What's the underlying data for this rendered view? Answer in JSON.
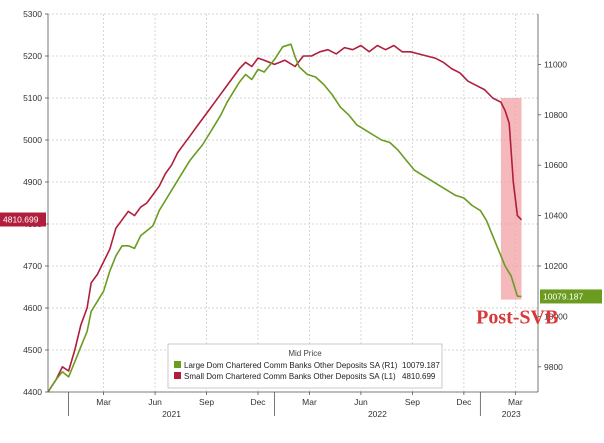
{
  "chart_data": {
    "type": "line",
    "legend": {
      "title": "Mid Price",
      "placement": "bottom-center",
      "entries": [
        {
          "label": "Large Dom Chartered Comm Banks Other Deposits SA  (R1)",
          "value": "10079.187",
          "color": "#6b9b1f"
        },
        {
          "label": "Small Dom Chartered Comm Banks Other Deposits SA  (L1)",
          "value": "4810.699",
          "color": "#b01e3c"
        }
      ]
    },
    "left_axis": {
      "ylim": [
        4400,
        5300
      ],
      "ticks": [
        "4400",
        "4500",
        "4600",
        "4700",
        "4800",
        "4900",
        "5000",
        "5100",
        "5200",
        "5300"
      ]
    },
    "right_axis": {
      "ylim": [
        9700,
        11200
      ],
      "ticks": [
        "9800",
        "10000",
        "10200",
        "10400",
        "10600",
        "10800",
        "11000"
      ]
    },
    "x_axis": {
      "range": [
        2020.9,
        2023.28
      ],
      "month_ticks": [
        {
          "label": "Mar",
          "x": 2021.17
        },
        {
          "label": "Jun",
          "x": 2021.42
        },
        {
          "label": "Sep",
          "x": 2021.67
        },
        {
          "label": "Dec",
          "x": 2021.92
        },
        {
          "label": "Mar",
          "x": 2022.17
        },
        {
          "label": "Jun",
          "x": 2022.42
        },
        {
          "label": "Sep",
          "x": 2022.67
        },
        {
          "label": "Dec",
          "x": 2022.92
        },
        {
          "label": "Mar",
          "x": 2023.17
        }
      ],
      "year_labels": [
        {
          "label": "2021",
          "x": 2021.5
        },
        {
          "label": "2022",
          "x": 2022.5
        },
        {
          "label": "2023",
          "x": 2023.15
        }
      ],
      "year_dividers": [
        2021.0,
        2022.0,
        2023.0
      ]
    },
    "series": [
      {
        "name": "Small Dom Chartered Comm Banks Other Deposits SA",
        "axis": "left",
        "color": "#b01e3c",
        "last_value": "4810.699",
        "points": [
          [
            2020.9,
            4400
          ],
          [
            2020.94,
            4430
          ],
          [
            2020.97,
            4460
          ],
          [
            2021.0,
            4450
          ],
          [
            2021.03,
            4500
          ],
          [
            2021.06,
            4560
          ],
          [
            2021.09,
            4600
          ],
          [
            2021.11,
            4660
          ],
          [
            2021.14,
            4680
          ],
          [
            2021.17,
            4710
          ],
          [
            2021.2,
            4740
          ],
          [
            2021.23,
            4790
          ],
          [
            2021.26,
            4810
          ],
          [
            2021.29,
            4830
          ],
          [
            2021.32,
            4820
          ],
          [
            2021.35,
            4840
          ],
          [
            2021.38,
            4850
          ],
          [
            2021.41,
            4870
          ],
          [
            2021.44,
            4890
          ],
          [
            2021.47,
            4920
          ],
          [
            2021.5,
            4940
          ],
          [
            2021.53,
            4970
          ],
          [
            2021.56,
            4990
          ],
          [
            2021.59,
            5010
          ],
          [
            2021.62,
            5030
          ],
          [
            2021.65,
            5050
          ],
          [
            2021.68,
            5070
          ],
          [
            2021.71,
            5090
          ],
          [
            2021.74,
            5110
          ],
          [
            2021.77,
            5130
          ],
          [
            2021.8,
            5150
          ],
          [
            2021.83,
            5170
          ],
          [
            2021.86,
            5185
          ],
          [
            2021.89,
            5175
          ],
          [
            2021.92,
            5195
          ],
          [
            2021.95,
            5190
          ],
          [
            2022.0,
            5180
          ],
          [
            2022.05,
            5190
          ],
          [
            2022.1,
            5175
          ],
          [
            2022.14,
            5200
          ],
          [
            2022.18,
            5200
          ],
          [
            2022.22,
            5210
          ],
          [
            2022.26,
            5215
          ],
          [
            2022.3,
            5205
          ],
          [
            2022.34,
            5220
          ],
          [
            2022.38,
            5215
          ],
          [
            2022.42,
            5225
          ],
          [
            2022.46,
            5210
          ],
          [
            2022.5,
            5225
          ],
          [
            2022.54,
            5215
          ],
          [
            2022.58,
            5225
          ],
          [
            2022.62,
            5210
          ],
          [
            2022.66,
            5210
          ],
          [
            2022.7,
            5205
          ],
          [
            2022.74,
            5200
          ],
          [
            2022.78,
            5195
          ],
          [
            2022.82,
            5185
          ],
          [
            2022.86,
            5170
          ],
          [
            2022.9,
            5160
          ],
          [
            2022.94,
            5140
          ],
          [
            2022.98,
            5130
          ],
          [
            2023.02,
            5120
          ],
          [
            2023.06,
            5100
          ],
          [
            2023.1,
            5090
          ],
          [
            2023.12,
            5070
          ],
          [
            2023.14,
            5040
          ],
          [
            2023.16,
            4900
          ],
          [
            2023.18,
            4820
          ],
          [
            2023.2,
            4810
          ]
        ]
      },
      {
        "name": "Large Dom Chartered Comm Banks Other Deposits SA",
        "axis": "right",
        "color": "#6b9b1f",
        "last_value": "10079.187",
        "points": [
          [
            2020.9,
            9700
          ],
          [
            2020.94,
            9750
          ],
          [
            2020.97,
            9780
          ],
          [
            2021.0,
            9760
          ],
          [
            2021.03,
            9820
          ],
          [
            2021.06,
            9880
          ],
          [
            2021.09,
            9940
          ],
          [
            2021.11,
            10020
          ],
          [
            2021.14,
            10060
          ],
          [
            2021.17,
            10100
          ],
          [
            2021.2,
            10180
          ],
          [
            2021.23,
            10240
          ],
          [
            2021.26,
            10280
          ],
          [
            2021.29,
            10280
          ],
          [
            2021.32,
            10270
          ],
          [
            2021.35,
            10320
          ],
          [
            2021.38,
            10340
          ],
          [
            2021.41,
            10360
          ],
          [
            2021.44,
            10420
          ],
          [
            2021.47,
            10460
          ],
          [
            2021.5,
            10500
          ],
          [
            2021.53,
            10540
          ],
          [
            2021.56,
            10580
          ],
          [
            2021.59,
            10620
          ],
          [
            2021.62,
            10650
          ],
          [
            2021.65,
            10680
          ],
          [
            2021.68,
            10720
          ],
          [
            2021.71,
            10760
          ],
          [
            2021.74,
            10800
          ],
          [
            2021.77,
            10850
          ],
          [
            2021.8,
            10890
          ],
          [
            2021.83,
            10930
          ],
          [
            2021.86,
            10960
          ],
          [
            2021.89,
            10940
          ],
          [
            2021.92,
            10980
          ],
          [
            2021.95,
            10970
          ],
          [
            2022.0,
            11020
          ],
          [
            2022.04,
            11070
          ],
          [
            2022.08,
            11080
          ],
          [
            2022.1,
            11030
          ],
          [
            2022.12,
            10990
          ],
          [
            2022.16,
            10960
          ],
          [
            2022.2,
            10950
          ],
          [
            2022.24,
            10920
          ],
          [
            2022.28,
            10880
          ],
          [
            2022.32,
            10830
          ],
          [
            2022.36,
            10800
          ],
          [
            2022.4,
            10760
          ],
          [
            2022.44,
            10740
          ],
          [
            2022.48,
            10720
          ],
          [
            2022.52,
            10700
          ],
          [
            2022.56,
            10690
          ],
          [
            2022.6,
            10660
          ],
          [
            2022.64,
            10620
          ],
          [
            2022.68,
            10580
          ],
          [
            2022.72,
            10560
          ],
          [
            2022.76,
            10540
          ],
          [
            2022.8,
            10520
          ],
          [
            2022.84,
            10500
          ],
          [
            2022.88,
            10480
          ],
          [
            2022.92,
            10470
          ],
          [
            2022.96,
            10440
          ],
          [
            2023.0,
            10420
          ],
          [
            2023.03,
            10380
          ],
          [
            2023.06,
            10320
          ],
          [
            2023.09,
            10260
          ],
          [
            2023.12,
            10200
          ],
          [
            2023.15,
            10160
          ],
          [
            2023.18,
            10080
          ],
          [
            2023.2,
            10079
          ]
        ]
      }
    ],
    "highlight": {
      "x_range": [
        2023.1,
        2023.2
      ],
      "left_range": [
        4620,
        5100
      ],
      "color": "#f2a0a4",
      "label": "Post-SVB"
    }
  }
}
